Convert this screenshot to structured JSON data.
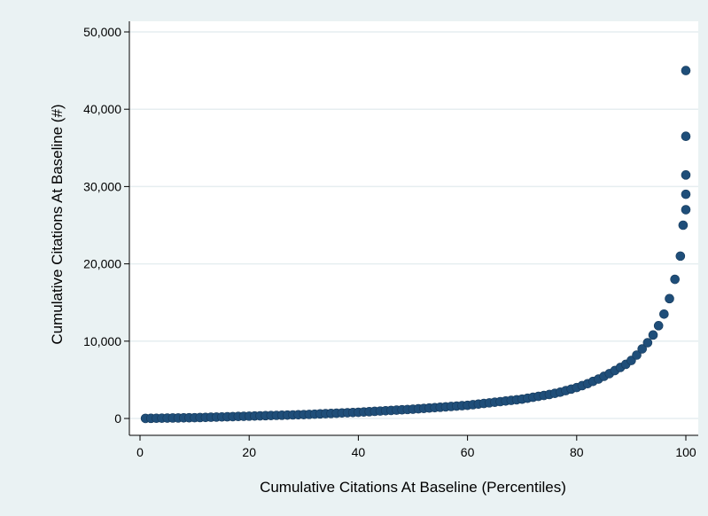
{
  "chart_data": {
    "type": "scatter",
    "title": "",
    "xlabel": "Cumulative Citations At Baseline (Percentiles)",
    "ylabel": "Cumulative Citations At Baseline (#)",
    "xlim": [
      0,
      102
    ],
    "ylim": [
      -500,
      51000
    ],
    "x_ticks": [
      0,
      20,
      40,
      60,
      80,
      100
    ],
    "x_tick_labels": [
      "0",
      "20",
      "40",
      "60",
      "80",
      "100"
    ],
    "y_ticks": [
      0,
      10000,
      20000,
      30000,
      40000,
      50000
    ],
    "y_tick_labels": [
      "0",
      "10,000",
      "20,000",
      "30,000",
      "40,000",
      "50,000"
    ],
    "grid": true,
    "legend": "none",
    "marker_color": "#1f4e79",
    "series": [
      {
        "points": [
          [
            1,
            10
          ],
          [
            2,
            20
          ],
          [
            3,
            30
          ],
          [
            4,
            40
          ],
          [
            5,
            50
          ],
          [
            6,
            60
          ],
          [
            7,
            70
          ],
          [
            8,
            80
          ],
          [
            9,
            90
          ],
          [
            10,
            100
          ],
          [
            11,
            120
          ],
          [
            12,
            140
          ],
          [
            13,
            160
          ],
          [
            14,
            180
          ],
          [
            15,
            200
          ],
          [
            16,
            220
          ],
          [
            17,
            240
          ],
          [
            18,
            260
          ],
          [
            19,
            280
          ],
          [
            20,
            300
          ],
          [
            21,
            320
          ],
          [
            22,
            340
          ],
          [
            23,
            360
          ],
          [
            24,
            380
          ],
          [
            25,
            400
          ],
          [
            26,
            420
          ],
          [
            27,
            440
          ],
          [
            28,
            460
          ],
          [
            29,
            480
          ],
          [
            30,
            500
          ],
          [
            31,
            530
          ],
          [
            32,
            560
          ],
          [
            33,
            590
          ],
          [
            34,
            620
          ],
          [
            35,
            650
          ],
          [
            36,
            680
          ],
          [
            37,
            710
          ],
          [
            38,
            740
          ],
          [
            39,
            770
          ],
          [
            40,
            800
          ],
          [
            41,
            840
          ],
          [
            42,
            880
          ],
          [
            43,
            920
          ],
          [
            44,
            960
          ],
          [
            45,
            1000
          ],
          [
            46,
            1040
          ],
          [
            47,
            1080
          ],
          [
            48,
            1120
          ],
          [
            49,
            1160
          ],
          [
            50,
            1200
          ],
          [
            51,
            1250
          ],
          [
            52,
            1300
          ],
          [
            53,
            1350
          ],
          [
            54,
            1400
          ],
          [
            55,
            1450
          ],
          [
            56,
            1500
          ],
          [
            57,
            1550
          ],
          [
            58,
            1600
          ],
          [
            59,
            1650
          ],
          [
            60,
            1700
          ],
          [
            61,
            1780
          ],
          [
            62,
            1860
          ],
          [
            63,
            1940
          ],
          [
            64,
            2020
          ],
          [
            65,
            2100
          ],
          [
            66,
            2180
          ],
          [
            67,
            2260
          ],
          [
            68,
            2340
          ],
          [
            69,
            2420
          ],
          [
            70,
            2500
          ],
          [
            71,
            2620
          ],
          [
            72,
            2740
          ],
          [
            73,
            2860
          ],
          [
            74,
            2980
          ],
          [
            75,
            3100
          ],
          [
            76,
            3250
          ],
          [
            77,
            3400
          ],
          [
            78,
            3600
          ],
          [
            79,
            3800
          ],
          [
            80,
            4000
          ],
          [
            81,
            4250
          ],
          [
            82,
            4500
          ],
          [
            83,
            4800
          ],
          [
            84,
            5100
          ],
          [
            85,
            5450
          ],
          [
            86,
            5800
          ],
          [
            87,
            6200
          ],
          [
            88,
            6600
          ],
          [
            89,
            7000
          ],
          [
            90,
            7500
          ],
          [
            91,
            8200
          ],
          [
            92,
            9000
          ],
          [
            93,
            9800
          ],
          [
            94,
            10800
          ],
          [
            95,
            12000
          ],
          [
            96,
            13500
          ],
          [
            97,
            15500
          ],
          [
            98,
            18000
          ],
          [
            99,
            21000
          ],
          [
            99.5,
            25000
          ],
          [
            100,
            27000
          ],
          [
            100,
            29000
          ],
          [
            100,
            31500
          ],
          [
            100,
            36500
          ],
          [
            100,
            45000
          ]
        ]
      }
    ]
  }
}
